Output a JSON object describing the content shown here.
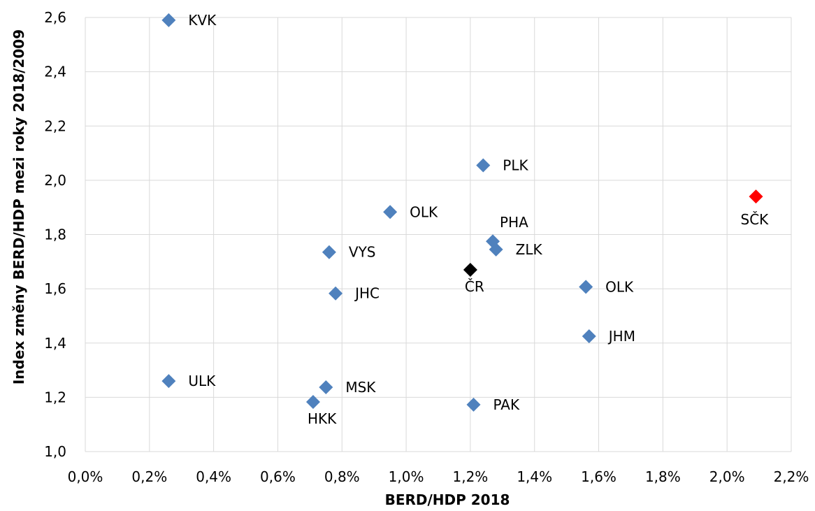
{
  "chart_data": {
    "type": "scatter",
    "title": "",
    "xlabel": "BERD/HDP 2018",
    "ylabel": "Index změny BERD/HDP mezi roky 2018/2009",
    "xlim": [
      0.0,
      2.2
    ],
    "ylim": [
      1.0,
      2.6
    ],
    "grid": true,
    "x_ticks": [
      0.0,
      0.2,
      0.4,
      0.6,
      0.8,
      1.0,
      1.2,
      1.4,
      1.6,
      1.8,
      2.0,
      2.2
    ],
    "y_ticks": [
      1.0,
      1.2,
      1.4,
      1.6,
      1.8,
      2.0,
      2.2,
      2.4,
      2.6
    ],
    "x_tick_labels": [
      "0,0%",
      "0,2%",
      "0,4%",
      "0,6%",
      "0,8%",
      "1,0%",
      "1,2%",
      "1,4%",
      "1,6%",
      "1,8%",
      "2,0%",
      "2,2%"
    ],
    "y_tick_labels": [
      "1,0",
      "1,2",
      "1,4",
      "1,6",
      "1,8",
      "2,0",
      "2,2",
      "2,4",
      "2,6"
    ],
    "points": [
      {
        "label": "KVK",
        "x": 0.26,
        "y": 2.59,
        "color": "#4f81bd",
        "label_pos": "right"
      },
      {
        "label": "PLK",
        "x": 1.24,
        "y": 2.055,
        "color": "#4f81bd",
        "label_pos": "right"
      },
      {
        "label": "SČK",
        "x": 2.09,
        "y": 1.94,
        "color": "#ff0000",
        "label_pos": "below"
      },
      {
        "label": "OLK",
        "x": 0.95,
        "y": 1.883,
        "color": "#4f81bd",
        "label_pos": "right"
      },
      {
        "label": "PHA",
        "x": 1.27,
        "y": 1.775,
        "color": "#4f81bd",
        "label_pos": "above"
      },
      {
        "label": "ZLK",
        "x": 1.28,
        "y": 1.745,
        "color": "#4f81bd",
        "label_pos": "right"
      },
      {
        "label": "VYS",
        "x": 0.76,
        "y": 1.735,
        "color": "#4f81bd",
        "label_pos": "right"
      },
      {
        "label": "ČR",
        "x": 1.2,
        "y": 1.67,
        "color": "#000000",
        "label_pos": "belowright"
      },
      {
        "label": "OLK",
        "x": 1.56,
        "y": 1.607,
        "color": "#4f81bd",
        "label_pos": "right"
      },
      {
        "label": "JHC",
        "x": 0.78,
        "y": 1.583,
        "color": "#4f81bd",
        "label_pos": "right"
      },
      {
        "label": "JHM",
        "x": 1.57,
        "y": 1.425,
        "color": "#4f81bd",
        "label_pos": "right"
      },
      {
        "label": "ULK",
        "x": 0.26,
        "y": 1.26,
        "color": "#4f81bd",
        "label_pos": "right"
      },
      {
        "label": "MSK",
        "x": 0.75,
        "y": 1.237,
        "color": "#4f81bd",
        "label_pos": "right"
      },
      {
        "label": "HKK",
        "x": 0.71,
        "y": 1.183,
        "color": "#4f81bd",
        "label_pos": "belowright"
      },
      {
        "label": "PAK",
        "x": 1.21,
        "y": 1.173,
        "color": "#4f81bd",
        "label_pos": "right"
      }
    ]
  }
}
